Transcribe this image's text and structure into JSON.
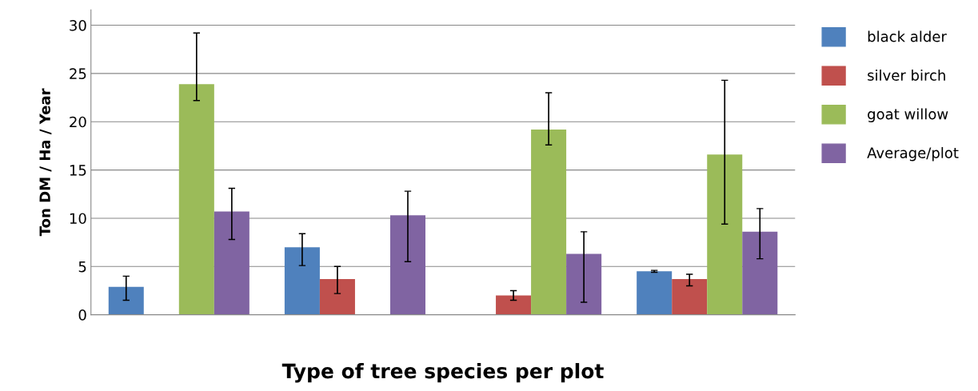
{
  "chart_data": {
    "type": "bar",
    "xlabel": "Type of tree species per plot",
    "ylabel": "Ton DM / Ha / Year",
    "categories": [
      null,
      null,
      null,
      null
    ],
    "series": [
      {
        "name": "black alder",
        "color": "#4f81bd",
        "values": [
          2.9,
          7.0,
          null,
          4.5
        ],
        "errors": [
          [
            1.5,
            4.0
          ],
          [
            5.1,
            8.4
          ],
          null,
          [
            4.4,
            4.6
          ]
        ]
      },
      {
        "name": "silver birch",
        "color": "#c0504d",
        "values": [
          null,
          3.7,
          2.0,
          3.7
        ],
        "errors": [
          null,
          [
            2.2,
            5.0
          ],
          [
            1.5,
            2.5
          ],
          [
            3.0,
            4.2
          ]
        ]
      },
      {
        "name": "goat willow",
        "color": "#9bbb59",
        "values": [
          23.9,
          null,
          19.2,
          16.6
        ],
        "errors": [
          [
            22.2,
            29.2
          ],
          null,
          [
            17.6,
            23.0
          ],
          [
            9.4,
            24.3
          ]
        ]
      },
      {
        "name": "Average/plot",
        "color": "#8064a2",
        "values": [
          10.7,
          10.3,
          6.3,
          8.6
        ],
        "errors": [
          [
            7.8,
            13.1
          ],
          [
            5.5,
            12.8
          ],
          [
            1.3,
            8.6
          ],
          [
            5.8,
            11.0
          ]
        ]
      }
    ],
    "ylim": [
      0,
      31.6
    ],
    "yticks": [
      0,
      5,
      10,
      15,
      20,
      25,
      30
    ],
    "grid": "y",
    "legend": "right"
  }
}
